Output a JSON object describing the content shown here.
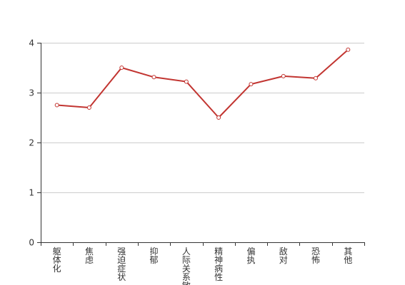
{
  "chart_data": {
    "type": "line",
    "categories": [
      "躯体化",
      "焦虑",
      "强迫症状",
      "抑郁",
      "人际关系敏感",
      "精神病性",
      "偏执",
      "敌对",
      "恐怖",
      "其他"
    ],
    "series": [
      {
        "values": [
          2.75,
          2.7,
          3.5,
          3.31,
          3.22,
          2.5,
          3.17,
          3.33,
          3.29,
          3.86
        ]
      }
    ],
    "yticks": [
      0,
      1,
      2,
      3,
      4
    ],
    "ylim": [
      0,
      4
    ],
    "title": "",
    "xlabel": "",
    "ylabel": "",
    "grid": "horizontal",
    "legend": "none",
    "colors": {
      "series": "#c23531",
      "grid": "#cccccc",
      "axis": "#333333"
    }
  }
}
